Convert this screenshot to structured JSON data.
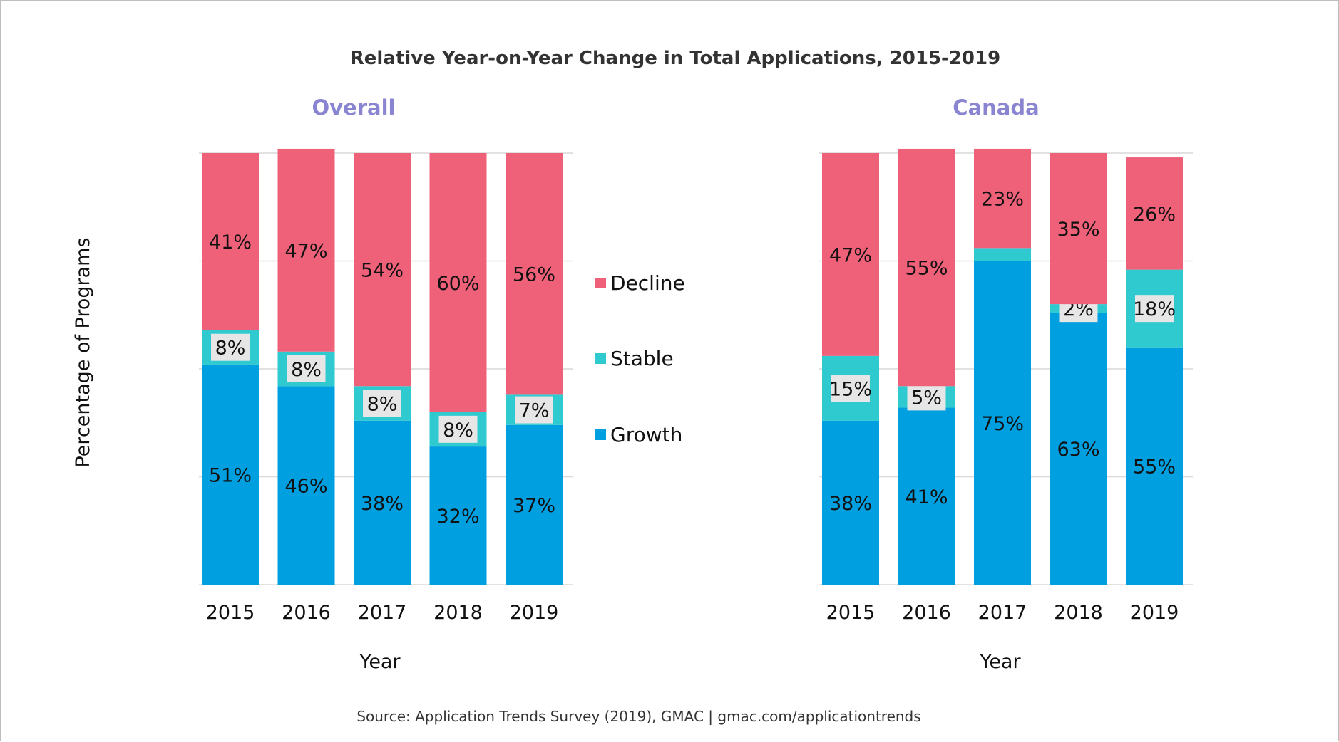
{
  "title": "Relative Year-on-Year Change in Total Applications, 2015-2019",
  "source": "Source: Application Trends Survey (2019), GMAC | gmac.com/applicationtrends",
  "ylabel": "Percentage of Programs",
  "colors": {
    "Decline": "#ef6079",
    "Stable": "#2ecad0",
    "Growth": "#009fe0",
    "subtitle": "#8a85d0",
    "label_box": "#e6e6e6"
  },
  "legend": [
    "Decline",
    "Stable",
    "Growth"
  ],
  "chart_data": [
    {
      "type": "bar",
      "stacked": true,
      "subtitle": "Overall",
      "xlabel": "Year",
      "categories": [
        "2015",
        "2016",
        "2017",
        "2018",
        "2019"
      ],
      "ylim": [
        0,
        100
      ],
      "series": [
        {
          "name": "Growth",
          "values": [
            51,
            46,
            38,
            32,
            37
          ],
          "labels": [
            "51%",
            "46%",
            "38%",
            "32%",
            "37%"
          ]
        },
        {
          "name": "Stable",
          "values": [
            8,
            8,
            8,
            8,
            7
          ],
          "labels": [
            "8%",
            "8%",
            "8%",
            "8%",
            "7%"
          ]
        },
        {
          "name": "Decline",
          "values": [
            41,
            47,
            54,
            60,
            56
          ],
          "labels": [
            "41%",
            "47%",
            "54%",
            "60%",
            "56%"
          ]
        }
      ]
    },
    {
      "type": "bar",
      "stacked": true,
      "subtitle": "Canada",
      "xlabel": "Year",
      "categories": [
        "2015",
        "2016",
        "2017",
        "2018",
        "2019"
      ],
      "ylim": [
        0,
        100
      ],
      "series": [
        {
          "name": "Growth",
          "values": [
            38,
            41,
            75,
            63,
            55
          ],
          "labels": [
            "38%",
            "41%",
            "75%",
            "63%",
            "55%"
          ]
        },
        {
          "name": "Stable",
          "values": [
            15,
            5,
            3,
            2,
            18
          ],
          "labels": [
            "15%",
            "5%",
            "",
            "2%",
            "18%"
          ]
        },
        {
          "name": "Decline",
          "values": [
            47,
            55,
            23,
            35,
            26
          ],
          "labels": [
            "47%",
            "55%",
            "23%",
            "35%",
            "26%"
          ]
        }
      ]
    }
  ]
}
